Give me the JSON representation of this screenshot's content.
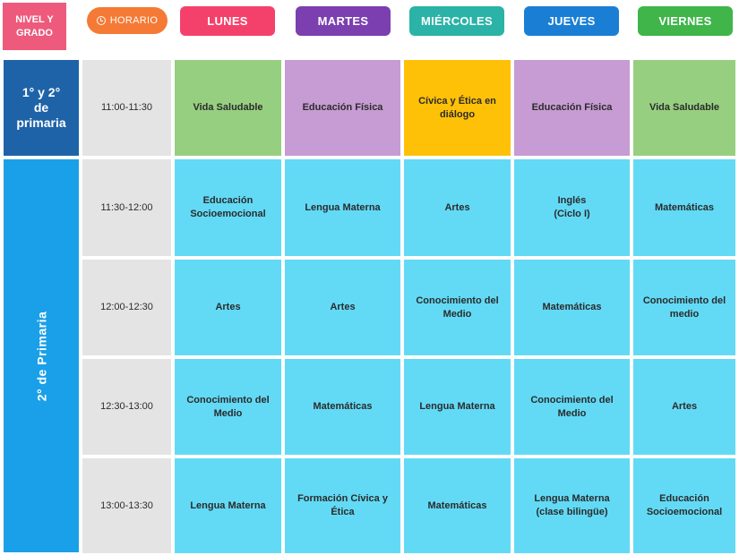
{
  "header": {
    "level_label_line1": "NIVEL Y",
    "level_label_line2": "GRADO",
    "horario_label": "HORARIO",
    "horario_icon": "clock-icon",
    "days": [
      {
        "label": "LUNES",
        "color": "#f4416c"
      },
      {
        "label": "MARTES",
        "color": "#7b3fb0"
      },
      {
        "label": "MIÉRCOLES",
        "color": "#2ab3a6"
      },
      {
        "label": "JUEVES",
        "color": "#1a7fd4"
      },
      {
        "label": "VIERNES",
        "color": "#3fb54a"
      }
    ]
  },
  "colors": {
    "level_header": "#ee5a7c",
    "horario": "#f57a35",
    "grade_1_2": "#1e63a8",
    "grade_2": "#1aa0e8",
    "time_cell": "#e4e4e4",
    "vida_saludable": "#97cf80",
    "educacion_fisica": "#c79bd3",
    "civica": "#ffc107",
    "default_subject": "#62daf6"
  },
  "groups": [
    {
      "label_line1": "1° y 2°",
      "label_line2": "de",
      "label_line3": "primaria"
    },
    {
      "label": "2° de Primaria"
    }
  ],
  "rows": [
    {
      "time": "11:00-11:30",
      "cells": [
        {
          "line1": "Vida Saludable",
          "line2": "",
          "color": "#97cf80"
        },
        {
          "line1": "Educación Física",
          "line2": "",
          "color": "#c79bd3"
        },
        {
          "line1": "Cívica y Ética en",
          "line2": "diálogo",
          "color": "#ffc107"
        },
        {
          "line1": "Educación Física",
          "line2": "",
          "color": "#c79bd3"
        },
        {
          "line1": "Vida Saludable",
          "line2": "",
          "color": "#97cf80"
        }
      ]
    },
    {
      "time": "11:30-12:00",
      "cells": [
        {
          "line1": "Educación",
          "line2": "Socioemocional",
          "color": "#62daf6"
        },
        {
          "line1": "Lengua Materna",
          "line2": "",
          "color": "#62daf6"
        },
        {
          "line1": "Artes",
          "line2": "",
          "color": "#62daf6"
        },
        {
          "line1": "Inglés",
          "line2": "(Ciclo I)",
          "color": "#62daf6"
        },
        {
          "line1": "Matemáticas",
          "line2": "",
          "color": "#62daf6"
        }
      ]
    },
    {
      "time": "12:00-12:30",
      "cells": [
        {
          "line1": "Artes",
          "line2": "",
          "color": "#62daf6"
        },
        {
          "line1": "Artes",
          "line2": "",
          "color": "#62daf6"
        },
        {
          "line1": "Conocimiento del",
          "line2": "Medio",
          "color": "#62daf6"
        },
        {
          "line1": "Matemáticas",
          "line2": "",
          "color": "#62daf6"
        },
        {
          "line1": "Conocimiento del",
          "line2": "medio",
          "color": "#62daf6"
        }
      ]
    },
    {
      "time": "12:30-13:00",
      "cells": [
        {
          "line1": "Conocimiento del",
          "line2": "Medio",
          "color": "#62daf6"
        },
        {
          "line1": "Matemáticas",
          "line2": "",
          "color": "#62daf6"
        },
        {
          "line1": "Lengua Materna",
          "line2": "",
          "color": "#62daf6"
        },
        {
          "line1": "Conocimiento del",
          "line2": "Medio",
          "color": "#62daf6"
        },
        {
          "line1": "Artes",
          "line2": "",
          "color": "#62daf6"
        }
      ]
    },
    {
      "time": "13:00-13:30",
      "cells": [
        {
          "line1": "Lengua Materna",
          "line2": "",
          "color": "#62daf6"
        },
        {
          "line1": "Formación Cívica y",
          "line2": "Ética",
          "color": "#62daf6"
        },
        {
          "line1": "Matemáticas",
          "line2": "",
          "color": "#62daf6"
        },
        {
          "line1": "Lengua Materna",
          "line2": "(clase bilingüe)",
          "color": "#62daf6"
        },
        {
          "line1": "Educación",
          "line2": "Socioemocional",
          "color": "#62daf6"
        }
      ]
    }
  ]
}
